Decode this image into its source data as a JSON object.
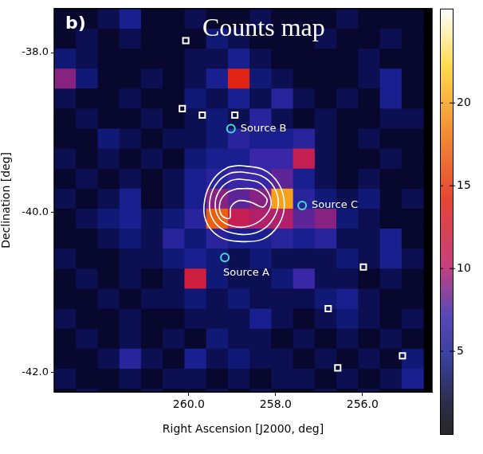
{
  "chart_data": {
    "type": "heatmap",
    "title": "Counts map",
    "panel_label": "b)",
    "x_label": "Right Ascension [J2000, deg]",
    "y_label": "Declination [deg]",
    "xlim": [
      263.1,
      254.4
    ],
    "xticks": [
      {
        "value": 260,
        "label": "260.0"
      },
      {
        "value": 258,
        "label": "258.0"
      },
      {
        "value": 256,
        "label": "256.0"
      }
    ],
    "ylim": [
      -42.24,
      -37.45
    ],
    "yticks": [
      {
        "value": -38,
        "label": "-38.0"
      },
      {
        "value": -40,
        "label": "-40.0"
      },
      {
        "value": -42,
        "label": "-42.0"
      }
    ],
    "grid": false,
    "counts_map": {
      "x": [
        262.85,
        262.35,
        261.85,
        261.35,
        260.85,
        260.35,
        259.85,
        259.35,
        258.85,
        258.35,
        257.85,
        257.35,
        256.85,
        256.35,
        255.85,
        255.35,
        254.85
      ],
      "y": [
        -37.575,
        -37.825,
        -38.075,
        -38.325,
        -38.575,
        -38.825,
        -39.075,
        -39.325,
        -39.575,
        -39.825,
        -40.075,
        -40.325,
        -40.575,
        -40.825,
        -41.075,
        -41.325,
        -41.575,
        -41.825,
        -42.075,
        -42.325
      ],
      "counts": [
        [
          2,
          2,
          3,
          5,
          2,
          2,
          3,
          2,
          2,
          3,
          2,
          2,
          2,
          3,
          2,
          2,
          2
        ],
        [
          2,
          3,
          2,
          3,
          2,
          2,
          2,
          4,
          3,
          2,
          2,
          2,
          3,
          2,
          2,
          3,
          2
        ],
        [
          4,
          3,
          2,
          2,
          2,
          2,
          3,
          3,
          5,
          3,
          2,
          2,
          2,
          2,
          3,
          2,
          2
        ],
        [
          9,
          4,
          2,
          2,
          3,
          2,
          3,
          5,
          14,
          4,
          3,
          2,
          2,
          2,
          3,
          5,
          2
        ],
        [
          3,
          2,
          2,
          3,
          2,
          2,
          4,
          3,
          5,
          3,
          6,
          3,
          2,
          3,
          2,
          5,
          2
        ],
        [
          2,
          3,
          2,
          2,
          3,
          2,
          3,
          4,
          3,
          6,
          3,
          2,
          3,
          2,
          2,
          3,
          3
        ],
        [
          2,
          2,
          4,
          3,
          2,
          3,
          3,
          4,
          6,
          5,
          5,
          6,
          3,
          2,
          3,
          2,
          2
        ],
        [
          3,
          2,
          3,
          2,
          3,
          2,
          4,
          5,
          5,
          7,
          7,
          11,
          3,
          2,
          2,
          3,
          2
        ],
        [
          2,
          3,
          2,
          3,
          2,
          3,
          5,
          6,
          7,
          7,
          8,
          5,
          3,
          2,
          3,
          2,
          2
        ],
        [
          3,
          2,
          3,
          5,
          2,
          3,
          5,
          9,
          8,
          9,
          20,
          6,
          4,
          3,
          4,
          2,
          3
        ],
        [
          2,
          3,
          4,
          5,
          3,
          4,
          6,
          17,
          11,
          10,
          10,
          8,
          9,
          4,
          3,
          2,
          2
        ],
        [
          2,
          2,
          3,
          4,
          3,
          6,
          4,
          6,
          5,
          5,
          6,
          5,
          6,
          3,
          3,
          5,
          2
        ],
        [
          3,
          2,
          2,
          3,
          3,
          4,
          5,
          4,
          3,
          4,
          3,
          3,
          3,
          4,
          3,
          5,
          3
        ],
        [
          2,
          3,
          2,
          3,
          2,
          3,
          12,
          4,
          3,
          3,
          4,
          7,
          3,
          3,
          2,
          3,
          2
        ],
        [
          2,
          2,
          3,
          2,
          3,
          3,
          4,
          3,
          4,
          3,
          3,
          3,
          4,
          5,
          3,
          2,
          2
        ],
        [
          3,
          2,
          2,
          3,
          2,
          2,
          3,
          3,
          3,
          5,
          3,
          2,
          3,
          4,
          3,
          2,
          3
        ],
        [
          2,
          3,
          2,
          3,
          2,
          3,
          2,
          4,
          3,
          3,
          2,
          3,
          2,
          3,
          2,
          3,
          2
        ],
        [
          2,
          2,
          3,
          6,
          3,
          2,
          5,
          3,
          4,
          3,
          3,
          2,
          3,
          2,
          3,
          2,
          4
        ],
        [
          3,
          2,
          2,
          3,
          2,
          3,
          3,
          2,
          3,
          2,
          3,
          3,
          2,
          3,
          2,
          3,
          5
        ],
        [
          2,
          3,
          2,
          2,
          3,
          2,
          2,
          3,
          2,
          3,
          2,
          2,
          3,
          2,
          3,
          2,
          2
        ]
      ],
      "colorbar_range": [
        0,
        25.7
      ],
      "colorbar_ticks": [
        5,
        10,
        15,
        20
      ]
    },
    "contours": {
      "color": "#ffffff",
      "line_style": "solid",
      "paths": [
        [
          [
            258.84,
            -39.41
          ],
          [
            258.29,
            -39.46
          ],
          [
            257.93,
            -39.64
          ],
          [
            257.8,
            -39.9
          ],
          [
            257.93,
            -40.15
          ],
          [
            258.29,
            -40.33
          ],
          [
            258.84,
            -40.36
          ],
          [
            259.3,
            -40.3
          ],
          [
            259.61,
            -40.1
          ],
          [
            259.63,
            -39.83
          ],
          [
            259.43,
            -39.58
          ],
          [
            259.12,
            -39.44
          ]
        ],
        [
          [
            258.81,
            -39.49
          ],
          [
            258.33,
            -39.54
          ],
          [
            258.04,
            -39.68
          ],
          [
            257.94,
            -39.9
          ],
          [
            258.11,
            -40.12
          ],
          [
            258.44,
            -40.25
          ],
          [
            258.84,
            -40.27
          ],
          [
            259.25,
            -40.2
          ],
          [
            259.49,
            -40.03
          ],
          [
            259.5,
            -39.8
          ],
          [
            259.32,
            -39.61
          ],
          [
            259.06,
            -39.51
          ]
        ],
        [
          [
            258.84,
            -39.58
          ],
          [
            258.4,
            -39.62
          ],
          [
            258.17,
            -39.75
          ],
          [
            258.11,
            -39.91
          ],
          [
            258.29,
            -40.07
          ],
          [
            258.62,
            -40.17
          ],
          [
            258.99,
            -40.17
          ],
          [
            259.3,
            -40.07
          ],
          [
            259.39,
            -39.87
          ],
          [
            259.25,
            -39.69
          ],
          [
            259.03,
            -39.6
          ]
        ],
        [
          [
            258.88,
            -39.7
          ],
          [
            258.48,
            -39.71
          ],
          [
            258.2,
            -39.83
          ],
          [
            258.29,
            -39.93
          ],
          [
            258.57,
            -39.87
          ],
          [
            258.84,
            -39.85
          ],
          [
            259.03,
            -39.93
          ],
          [
            259.06,
            -40.07
          ],
          [
            259.25,
            -40.03
          ],
          [
            259.28,
            -39.87
          ],
          [
            259.12,
            -39.75
          ]
        ]
      ]
    },
    "catalog_sources": {
      "marker": "square",
      "color": "#ffffff",
      "x": [
        260.07,
        260.15,
        259.69,
        258.94,
        255.98,
        256.79,
        256.57,
        255.08
      ],
      "y": [
        -37.85,
        -38.7,
        -38.78,
        -38.78,
        -40.68,
        -41.2,
        -41.94,
        -41.79
      ]
    },
    "labeled_sources": {
      "marker": "circle",
      "color": "#40e0d0",
      "labels": [
        "Source A",
        "Source B",
        "Source C"
      ],
      "x": [
        259.17,
        259.03,
        257.39
      ],
      "y": [
        -40.56,
        -38.95,
        -39.91
      ]
    }
  }
}
